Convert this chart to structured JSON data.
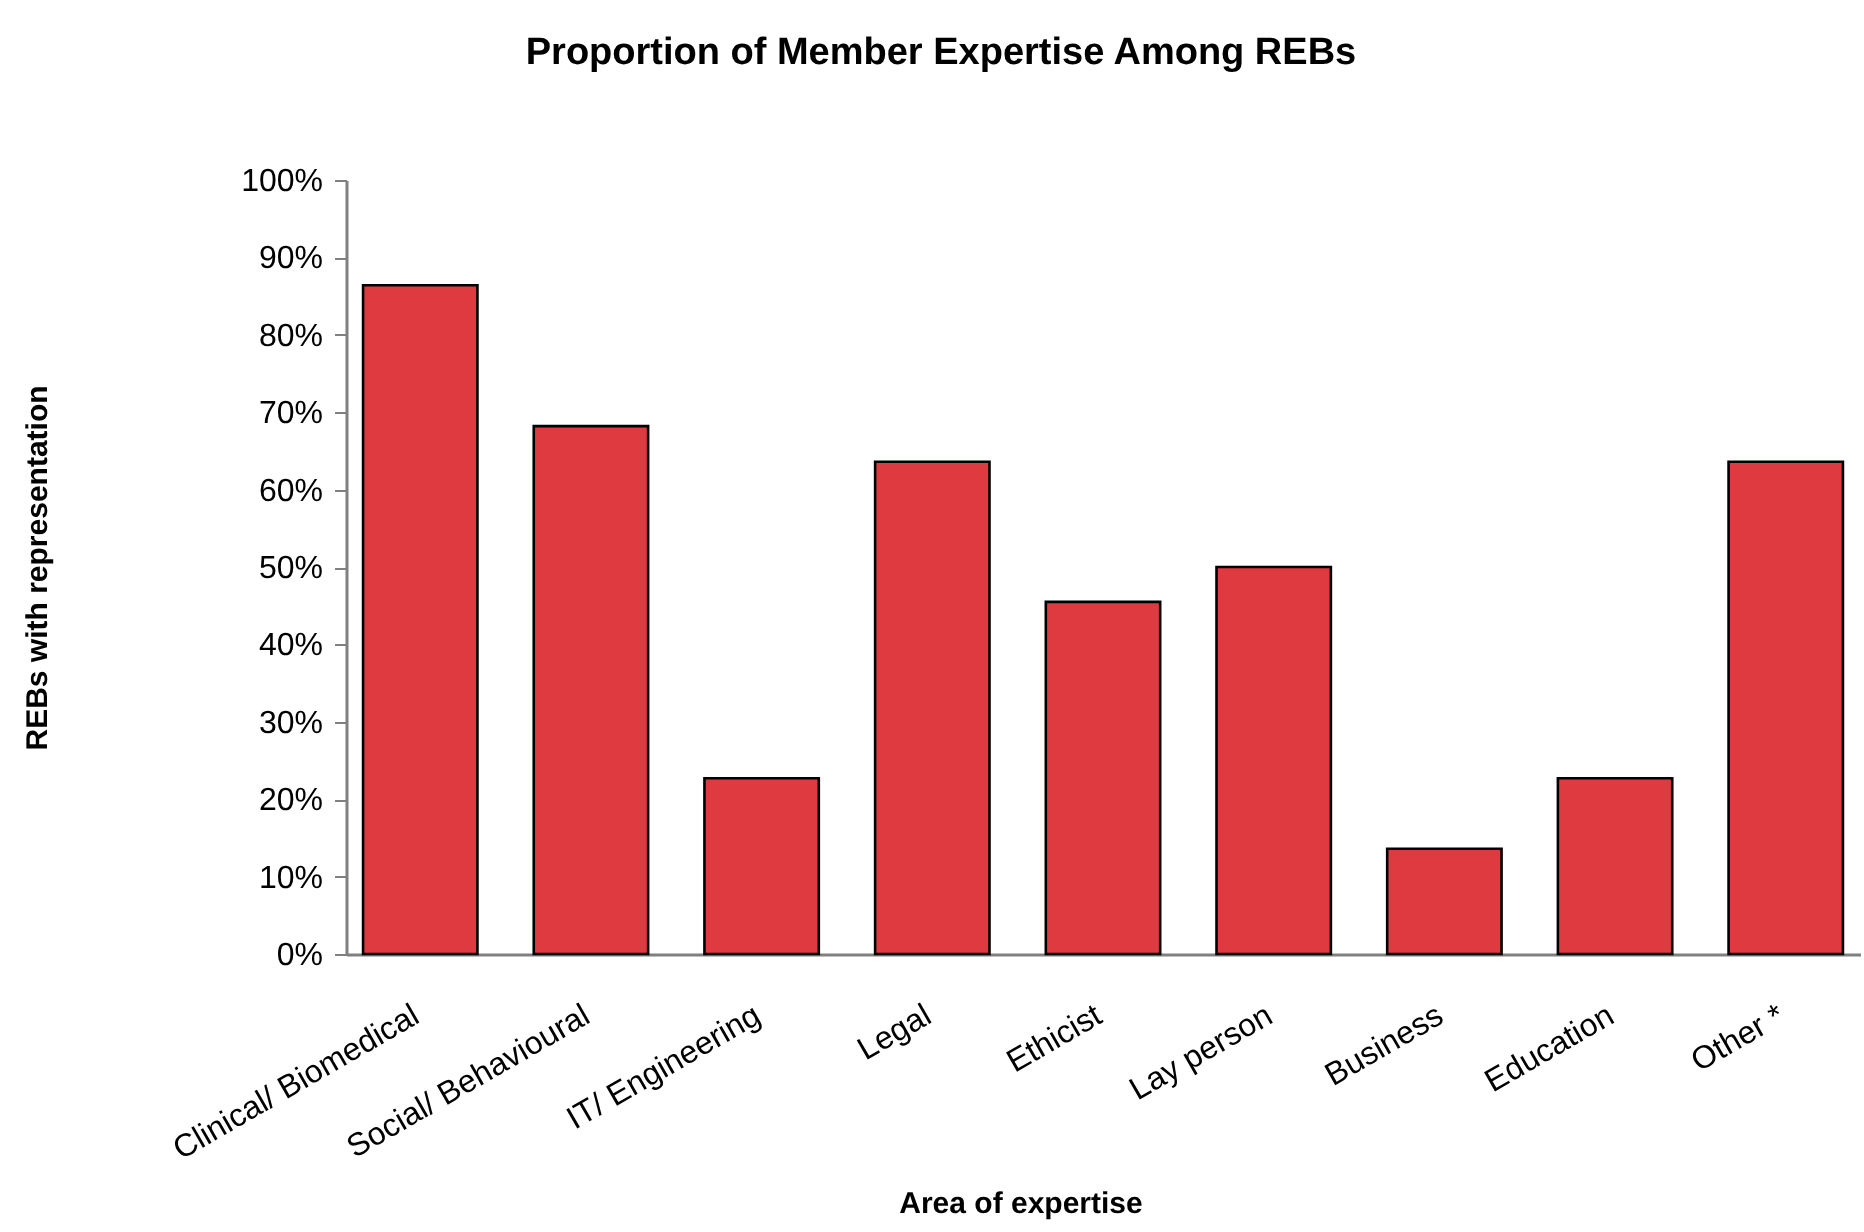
{
  "chart_data": {
    "type": "bar",
    "title": "Proportion of Member Expertise Among REBs",
    "xlabel": "Area of expertise",
    "ylabel": "REBs with representation",
    "categories": [
      "Clinical/ Biomedical",
      "Social/ Behavioural",
      "IT/ Engineering",
      "Legal",
      "Ethicist",
      "Lay person",
      "Business",
      "Education",
      "Other *"
    ],
    "values": [
      86.4,
      68.2,
      22.7,
      63.6,
      45.5,
      50,
      13.6,
      22.7,
      63.6
    ],
    "color": "#e03a41",
    "ylim": [
      0,
      100
    ],
    "yticks": [
      {
        "value": 0,
        "label": "0%"
      },
      {
        "value": 10,
        "label": "10%"
      },
      {
        "value": 20,
        "label": "20%"
      },
      {
        "value": 30,
        "label": "30%"
      },
      {
        "value": 40,
        "label": "40%"
      },
      {
        "value": 50,
        "label": "50%"
      },
      {
        "value": 60,
        "label": "60%"
      },
      {
        "value": 70,
        "label": "70%"
      },
      {
        "value": 80,
        "label": "80%"
      },
      {
        "value": 90,
        "label": "90%"
      },
      {
        "value": 100,
        "label": "100%"
      }
    ],
    "grid": false
  }
}
